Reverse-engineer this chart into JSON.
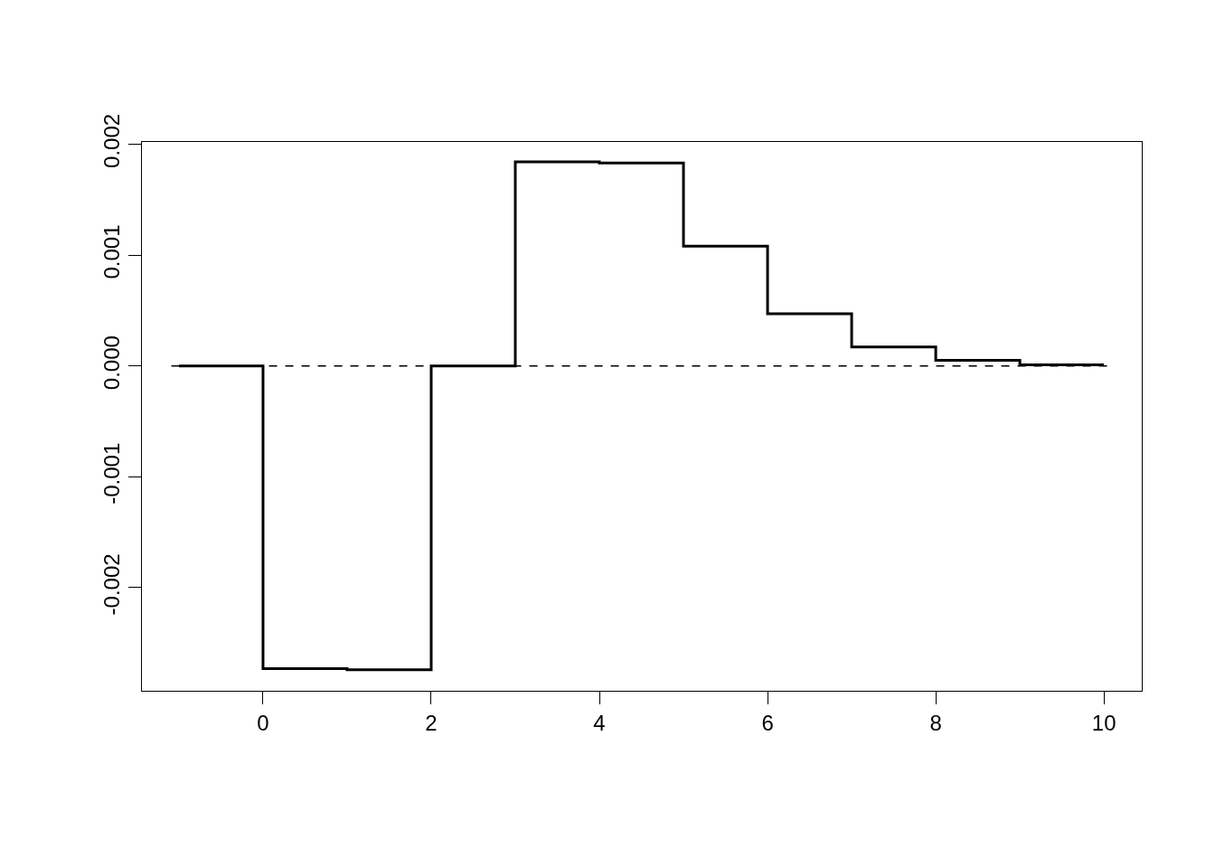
{
  "chart_data": {
    "type": "step",
    "x": [
      -1,
      0,
      1,
      2,
      3,
      4,
      5,
      6,
      7,
      8,
      9,
      10
    ],
    "series": [
      {
        "color": "#000000",
        "values": [
          0,
          -0.00273,
          -0.00274,
          0.0,
          0.00184,
          0.00183,
          0.00108,
          0.00047,
          0.00017,
          5e-05,
          1e-05,
          1e-05
        ]
      }
    ],
    "xlim": [
      -1.44,
      10.45
    ],
    "xticks": [
      0,
      2,
      4,
      6,
      8,
      10
    ],
    "ylim": [
      -0.00293,
      0.00202
    ],
    "yticks": [
      {
        "value": -0.002,
        "label": "-0.002"
      },
      {
        "value": -0.001,
        "label": "-0.001"
      },
      {
        "value": 0,
        "label": "0.000"
      },
      {
        "value": 0.001,
        "label": "0.001"
      },
      {
        "value": 0.002,
        "label": "0.002"
      }
    ],
    "ref_lines": [
      {
        "axis": "y",
        "value": 0,
        "line_style": "dashed",
        "color": "#000000"
      }
    ],
    "marker": "none",
    "line_style": "solid"
  }
}
